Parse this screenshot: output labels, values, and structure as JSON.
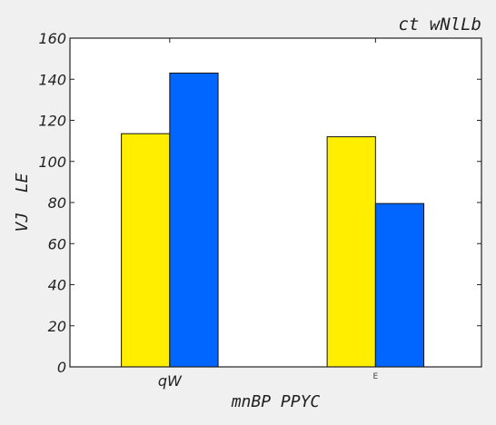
{
  "chart_data": {
    "type": "bar",
    "title": "ct wNlLb",
    "xlabel": "mnBP PPYC",
    "ylabel": "VJ  LE",
    "categories": [
      "qW",
      "E"
    ],
    "series": [
      {
        "values": [
          113.5,
          112
        ],
        "color": "#ffee00"
      },
      {
        "values": [
          143,
          79.5
        ],
        "color": "#0066ff"
      }
    ],
    "ylim": [
      0,
      160
    ],
    "yticks": [
      0,
      20,
      40,
      60,
      80,
      100,
      120,
      140,
      160
    ],
    "grid": false,
    "legend": "none"
  }
}
